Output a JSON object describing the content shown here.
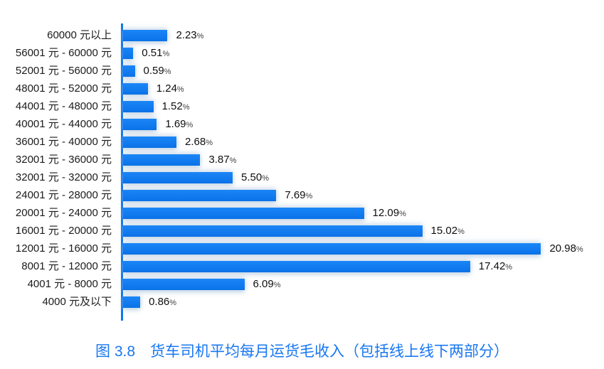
{
  "chart_data": {
    "type": "bar",
    "orientation": "horizontal",
    "title": "图 3.8　货车司机平均每月运货毛收入（包括线上线下两部分）",
    "categories": [
      "60000 元以上",
      "56001 元 - 60000 元",
      "52001 元 - 56000 元",
      "48001 元 - 52000 元",
      "44001 元 - 48000 元",
      "40001 元 - 44000 元",
      "36001 元 - 40000 元",
      "32001 元 - 36000 元",
      "32001 元 - 32000 元",
      "24001 元 - 28000 元",
      "20001 元 - 24000 元",
      "16001 元 - 20000 元",
      "12001 元 - 16000 元",
      "8001 元 - 12000 元",
      "4001 元 - 8000 元",
      "4000 元及以下"
    ],
    "values": [
      2.23,
      0.51,
      0.59,
      1.24,
      1.52,
      1.69,
      2.68,
      3.87,
      5.5,
      7.69,
      12.09,
      15.02,
      20.98,
      17.42,
      6.09,
      0.86
    ],
    "value_labels": [
      "2.23",
      "0.51",
      "0.59",
      "1.24",
      "1.52",
      "1.69",
      "2.68",
      "3.87",
      "5.50",
      "7.69",
      "12.09",
      "15.02",
      "20.98",
      "17.42",
      "6.09",
      "0.86"
    ],
    "value_suffix": "%",
    "xlim": [
      0,
      22
    ],
    "grid": false,
    "legend": false,
    "bar_color": "#0d79f0",
    "axis_color": "#0d79f0",
    "title_color": "#1877f2",
    "value_color": "#0f0f0f",
    "category_color": "#1b1b1b"
  }
}
